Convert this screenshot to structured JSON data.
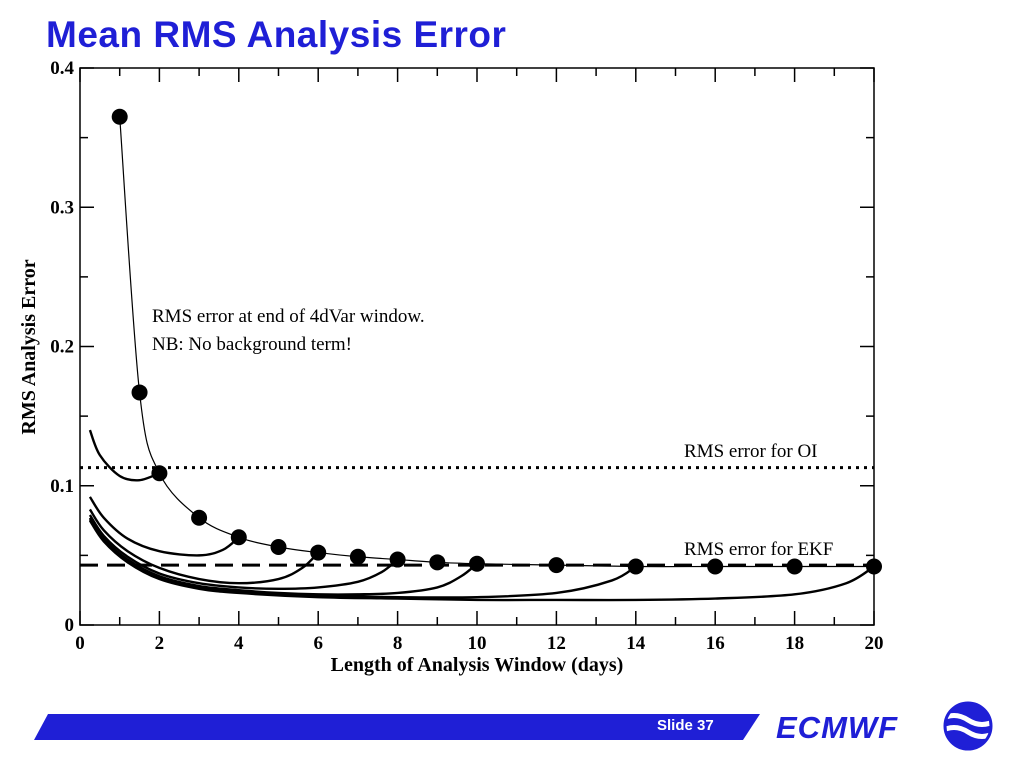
{
  "slide": {
    "title": "Mean RMS Analysis Error",
    "slide_label": "Slide 37",
    "brand": "ECMWF"
  },
  "colors": {
    "accent": "#1f1fd6",
    "ink": "#000000",
    "background": "#ffffff"
  },
  "icons": {
    "logo": "ecmwf-logo-icon"
  },
  "chart_data": {
    "type": "line",
    "title": "",
    "xlabel": "Length of Analysis Window (days)",
    "ylabel": "RMS Analysis Error",
    "xlim": [
      0,
      20
    ],
    "ylim": [
      0,
      0.4
    ],
    "x_ticks": [
      0,
      2,
      4,
      6,
      8,
      10,
      12,
      14,
      16,
      18,
      20
    ],
    "y_ticks": [
      0,
      0.1,
      0.2,
      0.3,
      0.4
    ],
    "y_tick_labels": [
      "0",
      "0.1",
      "0.2",
      "0.3",
      "0.4"
    ],
    "grid": false,
    "reference_lines": [
      {
        "label": "RMS error for OI",
        "y": 0.113,
        "style": "dotted"
      },
      {
        "label": "RMS error for EKF",
        "y": 0.043,
        "style": "dashed"
      }
    ],
    "annotations": [
      "RMS error at end of 4dVar window.",
      "NB: No background term!"
    ],
    "series": [
      {
        "style": "markers-line",
        "x": [
          1,
          1.5,
          2,
          3,
          4,
          5,
          6,
          7,
          8,
          9,
          10,
          12,
          14,
          16,
          18,
          20
        ],
        "y": [
          0.365,
          0.167,
          0.109,
          0.077,
          0.063,
          0.056,
          0.052,
          0.049,
          0.047,
          0.045,
          0.044,
          0.043,
          0.042,
          0.042,
          0.042,
          0.042
        ]
      },
      {
        "style": "line",
        "x": [
          0.25,
          0.5,
          1,
          1.5,
          2
        ],
        "y": [
          0.14,
          0.122,
          0.107,
          0.104,
          0.109
        ]
      },
      {
        "style": "line",
        "x": [
          0.25,
          0.6,
          1.2,
          2,
          3,
          3.6,
          4
        ],
        "y": [
          0.092,
          0.077,
          0.062,
          0.053,
          0.05,
          0.054,
          0.063
        ]
      },
      {
        "style": "line",
        "x": [
          0.25,
          0.6,
          1.2,
          2,
          3,
          4,
          5,
          5.6,
          6
        ],
        "y": [
          0.083,
          0.068,
          0.053,
          0.041,
          0.033,
          0.03,
          0.033,
          0.041,
          0.052
        ]
      },
      {
        "style": "line",
        "x": [
          0.25,
          0.6,
          1.2,
          2,
          3,
          4,
          5,
          6,
          7,
          7.6,
          8
        ],
        "y": [
          0.079,
          0.064,
          0.049,
          0.037,
          0.03,
          0.027,
          0.026,
          0.027,
          0.031,
          0.038,
          0.047
        ]
      },
      {
        "style": "line",
        "x": [
          0.25,
          0.6,
          1.2,
          2,
          3,
          4,
          5,
          6,
          7,
          8,
          9,
          9.6,
          10
        ],
        "y": [
          0.077,
          0.062,
          0.047,
          0.035,
          0.028,
          0.025,
          0.023,
          0.022,
          0.022,
          0.023,
          0.027,
          0.035,
          0.044
        ]
      },
      {
        "style": "line",
        "x": [
          0.25,
          0.6,
          1.2,
          2,
          3,
          4,
          6,
          8,
          10,
          12,
          13.4,
          14
        ],
        "y": [
          0.076,
          0.061,
          0.046,
          0.034,
          0.027,
          0.024,
          0.021,
          0.02,
          0.02,
          0.023,
          0.032,
          0.042
        ]
      },
      {
        "style": "line",
        "x": [
          0.25,
          0.6,
          1.2,
          2,
          3,
          4,
          6,
          8,
          10,
          12,
          14,
          16,
          18,
          19.3,
          20
        ],
        "y": [
          0.075,
          0.06,
          0.045,
          0.033,
          0.026,
          0.023,
          0.02,
          0.019,
          0.018,
          0.018,
          0.018,
          0.019,
          0.022,
          0.03,
          0.042
        ]
      }
    ]
  }
}
